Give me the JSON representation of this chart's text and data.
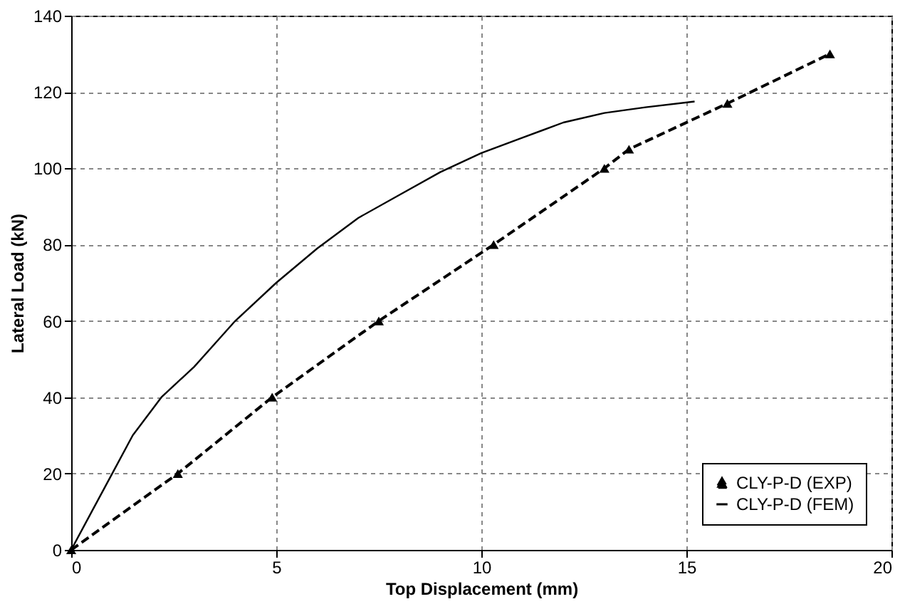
{
  "chart_data": {
    "type": "line",
    "xlabel": "Top Displacement (mm)",
    "ylabel": "Lateral Load (kN)",
    "xlim": [
      0,
      20
    ],
    "xticks": [
      0,
      5,
      10,
      15,
      20
    ],
    "ylim": [
      0,
      140
    ],
    "yticks": [
      0,
      20,
      40,
      60,
      80,
      100,
      120,
      140
    ],
    "grid": true,
    "legend": "bottom right",
    "series": [
      {
        "name": "CLY-P-D (EXP)",
        "color": "#000000",
        "line_style": "dashed",
        "marker": "triangle",
        "x": [
          0,
          2.6,
          4.9,
          7.5,
          10.3,
          13.0,
          13.6,
          16.0,
          18.5
        ],
        "values": [
          0,
          20,
          40,
          60,
          80,
          100,
          105,
          117,
          130
        ]
      },
      {
        "name": "CLY-P-D (FEM)",
        "color": "#000000",
        "line_style": "solid",
        "marker": "none",
        "x": [
          0,
          0.5,
          1,
          1.5,
          2.2,
          3,
          4,
          5,
          6,
          7,
          8,
          9,
          10,
          11,
          12,
          13,
          14,
          15.2
        ],
        "values": [
          0,
          10,
          20,
          30,
          40,
          48,
          60,
          70,
          79,
          87,
          93,
          99,
          104,
          108,
          112,
          114.5,
          116,
          117.5
        ]
      }
    ]
  }
}
